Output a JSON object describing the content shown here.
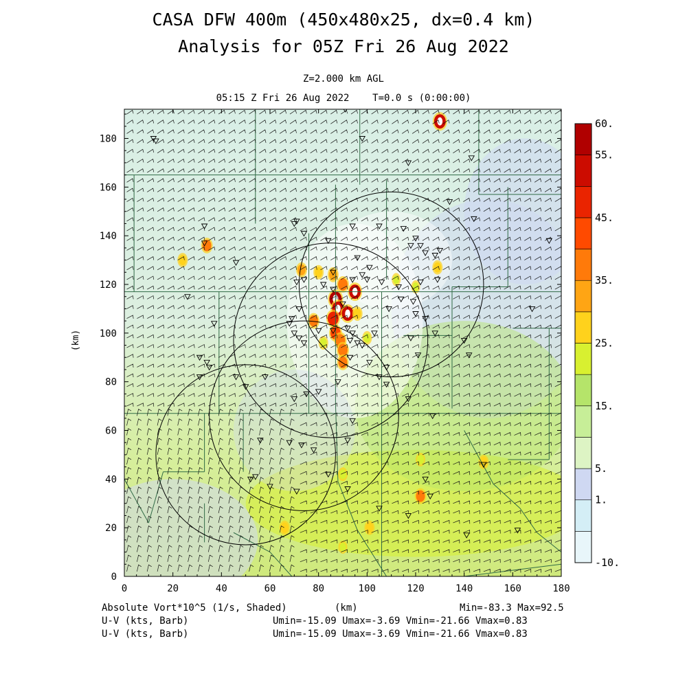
{
  "header": {
    "title_line1": "CASA DFW 400m (450x480x25, dx=0.4 km)",
    "title_line2": "Analysis for 05Z Fri 26 Aug 2022",
    "level": "Z=2.000 km AGL",
    "time": "05:15 Z Fri 26 Aug 2022    T=0.0 s (0:00:00)"
  },
  "axes": {
    "x_ticks": [
      "0",
      "20",
      "40",
      "60",
      "80",
      "100",
      "120",
      "140",
      "160",
      "180"
    ],
    "y_ticks": [
      "0",
      "20",
      "40",
      "60",
      "80",
      "100",
      "120",
      "140",
      "160",
      "180"
    ],
    "x_label": "(km)",
    "y_label": "(km)",
    "x_range": [
      0,
      180
    ],
    "y_range": [
      0,
      192
    ]
  },
  "colorbar": {
    "labels": [
      "60.",
      "55.",
      "45.",
      "35.",
      "25.",
      "15.",
      "5.",
      "1.",
      "-10."
    ],
    "colors": [
      "#e8f6fa",
      "#d4eef6",
      "#cfd8f2",
      "#ddf4c4",
      "#c7ee98",
      "#b5e46a",
      "#d8f030",
      "#ffd21c",
      "#ffa514",
      "#ff7a0a",
      "#ff4a00",
      "#ea2400",
      "#cc0c00",
      "#b00000"
    ]
  },
  "footer": {
    "field_label": "Absolute Vort*10^5 (1/s, Shaded)",
    "x_unit": "(km)",
    "min_max": "Min=-83.3 Max=92.5",
    "wind1_label": "U-V (kts, Barb)",
    "wind2_label": "U-V (kts, Barb)",
    "wind1_stats": "Umin=-15.09 Umax=-3.69 Vmin=-21.66 Vmax=0.83",
    "wind2_stats": "Umin=-15.09 Umax=-3.69 Vmin=-21.66 Vmax=0.83"
  },
  "map": {
    "radars": [
      {
        "x": 50,
        "y": 50,
        "r": 37
      },
      {
        "x": 74,
        "y": 66,
        "r": 39
      },
      {
        "x": 85,
        "y": 97,
        "r": 40
      },
      {
        "x": 110,
        "y": 120,
        "r": 38
      }
    ],
    "stations": [
      [
        12,
        180
      ],
      [
        13,
        179
      ],
      [
        91,
        192
      ],
      [
        98,
        180
      ],
      [
        117,
        170
      ],
      [
        143,
        172
      ],
      [
        134,
        154
      ],
      [
        144,
        147
      ],
      [
        115,
        143
      ],
      [
        105,
        144
      ],
      [
        118,
        136
      ],
      [
        120,
        139
      ],
      [
        122,
        136
      ],
      [
        124,
        133
      ],
      [
        128,
        132
      ],
      [
        130,
        134
      ],
      [
        129,
        122
      ],
      [
        122,
        121
      ],
      [
        113,
        119
      ],
      [
        106,
        121
      ],
      [
        100,
        122
      ],
      [
        94,
        122
      ],
      [
        98,
        124
      ],
      [
        86,
        125
      ],
      [
        82,
        120
      ],
      [
        74,
        122
      ],
      [
        71,
        121
      ],
      [
        72,
        110
      ],
      [
        69,
        106
      ],
      [
        68,
        104
      ],
      [
        70,
        100
      ],
      [
        72,
        98
      ],
      [
        74,
        96
      ],
      [
        80,
        101
      ],
      [
        86,
        101
      ],
      [
        94,
        100
      ],
      [
        103,
        100
      ],
      [
        109,
        110
      ],
      [
        114,
        114
      ],
      [
        119,
        113
      ],
      [
        120,
        108
      ],
      [
        128,
        100
      ],
      [
        124,
        106
      ],
      [
        118,
        98
      ],
      [
        121,
        91
      ],
      [
        108,
        86
      ],
      [
        98,
        95
      ],
      [
        93,
        90
      ],
      [
        88,
        80
      ],
      [
        80,
        76
      ],
      [
        75,
        75
      ],
      [
        70,
        73
      ],
      [
        58,
        82
      ],
      [
        50,
        78
      ],
      [
        46,
        82
      ],
      [
        35,
        86
      ],
      [
        34,
        88
      ],
      [
        31,
        90
      ],
      [
        31,
        82
      ],
      [
        37,
        104
      ],
      [
        26,
        115
      ],
      [
        33,
        144
      ],
      [
        33,
        137
      ],
      [
        46,
        129
      ],
      [
        70,
        145
      ],
      [
        71,
        146
      ],
      [
        74,
        141
      ],
      [
        84,
        138
      ],
      [
        94,
        144
      ],
      [
        96,
        131
      ],
      [
        101,
        127
      ],
      [
        86,
        118
      ],
      [
        90,
        112
      ],
      [
        92,
        102
      ],
      [
        93,
        97
      ],
      [
        96,
        96
      ],
      [
        101,
        88
      ],
      [
        105,
        82
      ],
      [
        108,
        79
      ],
      [
        117,
        73
      ],
      [
        127,
        66
      ],
      [
        94,
        64
      ],
      [
        92,
        56
      ],
      [
        78,
        52
      ],
      [
        73,
        54
      ],
      [
        68,
        55
      ],
      [
        56,
        56
      ],
      [
        52,
        40
      ],
      [
        54,
        41
      ],
      [
        60,
        37
      ],
      [
        71,
        35
      ],
      [
        84,
        42
      ],
      [
        92,
        36
      ],
      [
        105,
        28
      ],
      [
        117,
        25
      ],
      [
        126,
        33
      ],
      [
        124,
        40
      ],
      [
        141,
        17
      ],
      [
        148,
        46
      ],
      [
        162,
        19
      ],
      [
        175,
        138
      ],
      [
        168,
        110
      ],
      [
        140,
        97
      ],
      [
        142,
        91
      ]
    ],
    "hotspots": [
      {
        "x": 87,
        "y": 114,
        "v": 60
      },
      {
        "x": 88,
        "y": 110,
        "v": 55
      },
      {
        "x": 92,
        "y": 108,
        "v": 55
      },
      {
        "x": 86,
        "y": 106,
        "v": 50
      },
      {
        "x": 87,
        "y": 100,
        "v": 45
      },
      {
        "x": 89,
        "y": 97,
        "v": 40
      },
      {
        "x": 90,
        "y": 93,
        "v": 40
      },
      {
        "x": 90,
        "y": 88,
        "v": 35
      },
      {
        "x": 95,
        "y": 117,
        "v": 55
      },
      {
        "x": 90,
        "y": 120,
        "v": 40
      },
      {
        "x": 86,
        "y": 124,
        "v": 30
      },
      {
        "x": 80,
        "y": 125,
        "v": 25
      },
      {
        "x": 73,
        "y": 126,
        "v": 30
      },
      {
        "x": 78,
        "y": 105,
        "v": 35
      },
      {
        "x": 82,
        "y": 96,
        "v": 20
      },
      {
        "x": 100,
        "y": 98,
        "v": 20
      },
      {
        "x": 96,
        "y": 108,
        "v": 25
      },
      {
        "x": 130,
        "y": 187,
        "v": 55
      },
      {
        "x": 34,
        "y": 136,
        "v": 35
      },
      {
        "x": 24,
        "y": 130,
        "v": 25
      },
      {
        "x": 129,
        "y": 127,
        "v": 25
      },
      {
        "x": 122,
        "y": 48,
        "v": 20
      },
      {
        "x": 122,
        "y": 33,
        "v": 35
      },
      {
        "x": 101,
        "y": 20,
        "v": 25
      },
      {
        "x": 66,
        "y": 20,
        "v": 25
      },
      {
        "x": 90,
        "y": 42,
        "v": 20
      },
      {
        "x": 148,
        "y": 47,
        "v": 25
      },
      {
        "x": 90,
        "y": 12,
        "v": 15
      },
      {
        "x": 112,
        "y": 122,
        "v": 15
      },
      {
        "x": 120,
        "y": 119,
        "v": 15
      }
    ]
  }
}
